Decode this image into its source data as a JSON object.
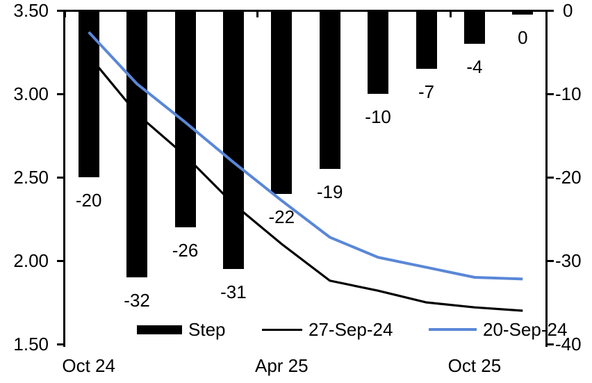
{
  "chart_data": {
    "type": "combo_bar_line",
    "title": "",
    "grid": false,
    "background": "#FFFFFF",
    "n_categories": 10,
    "x_axis": {
      "labels": [
        {
          "text": "Oct 24",
          "category": 0
        },
        {
          "text": "Apr 25",
          "category": 4
        },
        {
          "text": "Oct 25",
          "category": 8
        }
      ],
      "tick_boundaries": [
        0,
        4,
        8
      ]
    },
    "left_axis": {
      "min": 1.5,
      "max": 3.5,
      "tick_values": [
        3.5,
        3.0,
        2.5,
        2.0,
        1.5
      ],
      "tick_labels": [
        "3.50",
        "3.00",
        "2.50",
        "2.00",
        "1.50"
      ]
    },
    "right_axis": {
      "min": -40,
      "max": 0,
      "tick_values": [
        0,
        -10,
        -20,
        -30,
        -40
      ],
      "tick_labels": [
        "0",
        "-10",
        "-20",
        "-30",
        "-40"
      ]
    },
    "series": [
      {
        "name": "Step",
        "type": "bar",
        "axis": "right",
        "color": "#000000",
        "values": [
          -20,
          -32,
          -26,
          -31,
          -22,
          -19,
          -10,
          -7,
          -4,
          0
        ],
        "data_labels": [
          "-20",
          "-32",
          "-26",
          "-31",
          "-22",
          "-19",
          "-10",
          "-7",
          "-4",
          "0"
        ]
      },
      {
        "name": "27-Sep-24",
        "type": "line",
        "axis": "left",
        "color": "#000000",
        "values": [
          3.23,
          2.88,
          2.63,
          2.34,
          2.1,
          1.88,
          1.82,
          1.75,
          1.72,
          1.7
        ]
      },
      {
        "name": "20-Sep-24",
        "type": "line",
        "axis": "left",
        "color": "#5A87D7",
        "values": [
          3.37,
          3.06,
          2.83,
          2.59,
          2.36,
          2.14,
          2.02,
          1.96,
          1.9,
          1.89
        ]
      }
    ],
    "legend_position": "bottom"
  }
}
